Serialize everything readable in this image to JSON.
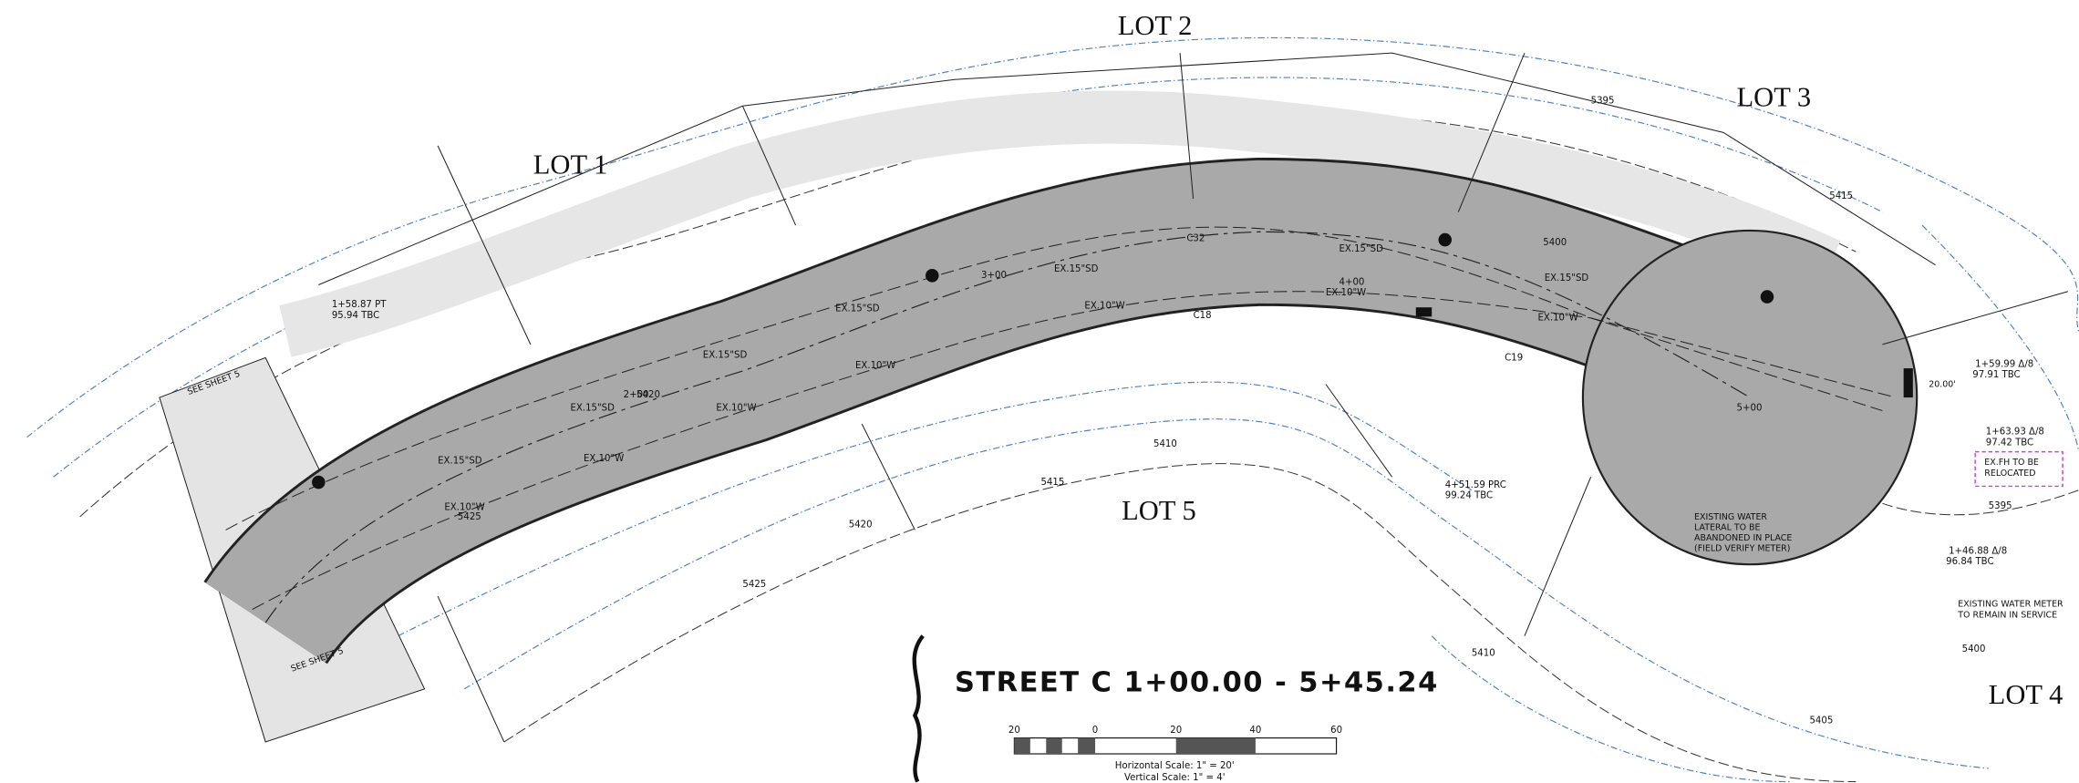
{
  "lots": [
    "LOT 1",
    "LOT 2",
    "LOT 3",
    "LOT 4",
    "LOT 5"
  ],
  "title": "STREET C 1+00.00 - 5+45.24",
  "scale": {
    "ticks": [
      "20",
      "0",
      "20",
      "40",
      "60"
    ],
    "horizontal": "Horizontal Scale: 1\" = 20'",
    "vertical": "Vertical Scale: 1\" = 4'"
  },
  "notes": [
    [
      "EXISTING WATER",
      "LATERAL TO BE",
      "ABANDONED IN PLACE",
      "(FIELD VERIFY METER)"
    ],
    [
      "EXISTING WATER METER",
      "TO REMAIN IN SERVICE"
    ],
    [
      "EX.FH TO BE",
      "RELOCATED"
    ],
    [
      "SEE SHEET 5"
    ],
    [
      "SEE SHEET 5"
    ],
    [
      "20.00'"
    ]
  ],
  "pipes": [
    "EX.15\"SD",
    "EX.10\"W",
    "EX.15\"SD",
    "EX.10\"W",
    "EX.15\"SD",
    "EX.10\"W",
    "EX.15\"SD",
    "EX.10\"W",
    "EX.15\"SD",
    "EX.10\"W",
    "EX.15\"SD",
    "EX.10\"W",
    "EX.15\"SD",
    "EX.10\"W"
  ],
  "stations": [
    "4+51.59 PRC",
    "99.24 TBC",
    "1+63.93 Δ/8",
    "97.42 TBC",
    "1+46.88 Δ/8",
    "96.84 TBC",
    "1+59.99 Δ/8",
    "97.91 TBC",
    "1+58.87 PT",
    "95.94 TBC",
    "5+00",
    "4+00",
    "3+00",
    "2+00",
    "C18",
    "C19",
    "C32"
  ],
  "contours": [
    "5395",
    "5400",
    "5405",
    "5410",
    "5415",
    "5420",
    "5425",
    "5395",
    "5400",
    "5410",
    "5415",
    "5420",
    "5425"
  ]
}
